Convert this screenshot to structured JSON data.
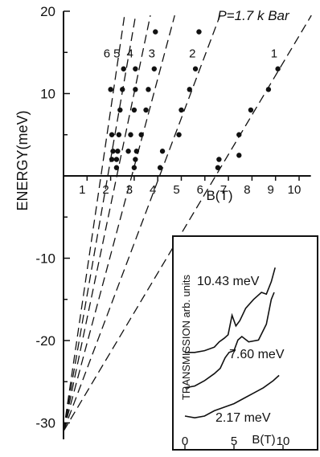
{
  "chart_data": {
    "type": "scatter",
    "pressure_label": "P=1.7 k Bar",
    "ylabel": "ENERGY(meV)",
    "xlabel": "B(T)",
    "xlim": [
      0,
      10.5
    ],
    "ylim": [
      -32,
      20
    ],
    "x_ticks": [
      "1",
      "2",
      "3",
      "4",
      "5",
      "6",
      "7",
      "8",
      "9",
      "10"
    ],
    "y_ticks": [
      "20",
      "10",
      "-10",
      "-20",
      "-30"
    ],
    "series": [
      {
        "name": "1",
        "line": {
          "x0": 0,
          "y0": -31,
          "slope": 4.8
        },
        "points": [
          [
            6.55,
            1
          ],
          [
            6.6,
            2
          ],
          [
            7.45,
            2.5
          ],
          [
            7.45,
            5
          ],
          [
            7.95,
            8
          ],
          [
            8.7,
            10.5
          ],
          [
            9.1,
            13
          ]
        ]
      },
      {
        "name": "2",
        "line": {
          "x0": 0,
          "y0": -31,
          "slope": 7.6
        },
        "points": [
          [
            4.1,
            1
          ],
          [
            4.2,
            3
          ],
          [
            4.9,
            5
          ],
          [
            5.0,
            8
          ],
          [
            5.35,
            10.5
          ],
          [
            5.6,
            13
          ],
          [
            5.75,
            17.5
          ]
        ]
      },
      {
        "name": "3",
        "line": {
          "x0": 0,
          "y0": -31,
          "slope": 10.7
        },
        "points": [
          [
            3.0,
            1
          ],
          [
            3.05,
            2
          ],
          [
            3.1,
            3
          ],
          [
            3.3,
            5
          ],
          [
            3.5,
            8
          ],
          [
            3.6,
            10.5
          ],
          [
            3.85,
            13
          ],
          [
            3.9,
            17.5
          ]
        ]
      },
      {
        "name": "4",
        "line": {
          "x0": 0,
          "y0": -31,
          "slope": 13.7
        },
        "points": [
          [
            2.75,
            3
          ],
          [
            2.85,
            5
          ],
          [
            3.0,
            8
          ],
          [
            3.05,
            10.5
          ],
          [
            3.05,
            13
          ]
        ]
      },
      {
        "name": "5",
        "line": {
          "x0": 0,
          "y0": -31,
          "slope": 16.5
        },
        "points": [
          [
            2.25,
            1
          ],
          [
            2.25,
            2
          ],
          [
            2.3,
            3
          ],
          [
            2.35,
            5
          ],
          [
            2.4,
            8
          ],
          [
            2.5,
            10.5
          ],
          [
            2.55,
            13
          ]
        ]
      },
      {
        "name": "6",
        "line": {
          "x0": 0,
          "y0": -31,
          "slope": 19.5
        },
        "points": [
          [
            2.05,
            2
          ],
          [
            2.1,
            3
          ],
          [
            2.05,
            5
          ],
          [
            2.0,
            10.5
          ]
        ]
      }
    ],
    "inset": {
      "ylabel": "TRANSMISSION arb. units",
      "xlabel": "B(T)",
      "x_ticks": [
        "0",
        "5",
        "10"
      ],
      "xlim": [
        0,
        10
      ],
      "ylim": [
        0,
        10
      ],
      "curves": [
        {
          "name": "10.43 meV",
          "points": [
            [
              0,
              4.6
            ],
            [
              1,
              4.6
            ],
            [
              2,
              4.7
            ],
            [
              3,
              4.9
            ],
            [
              3.5,
              5.2
            ],
            [
              4,
              5.4
            ],
            [
              4.4,
              5.6
            ],
            [
              4.8,
              6.7
            ],
            [
              5.2,
              6.1
            ],
            [
              5.6,
              6.4
            ],
            [
              6.2,
              7.1
            ],
            [
              7,
              7.6
            ],
            [
              7.8,
              8.0
            ],
            [
              8.3,
              7.9
            ],
            [
              8.8,
              8.6
            ],
            [
              9.2,
              9.4
            ]
          ]
        },
        {
          "name": "7.60 meV",
          "points": [
            [
              0,
              2.6
            ],
            [
              1,
              2.7
            ],
            [
              2,
              3.0
            ],
            [
              3,
              3.4
            ],
            [
              3.6,
              3.7
            ],
            [
              4.1,
              4.3
            ],
            [
              4.5,
              4.6
            ],
            [
              5,
              4.7
            ],
            [
              5.4,
              5.3
            ],
            [
              5.8,
              5.5
            ],
            [
              6.5,
              5.2
            ],
            [
              7.5,
              5.3
            ],
            [
              8.3,
              6.2
            ],
            [
              8.8,
              7.6
            ],
            [
              9.1,
              8.0
            ]
          ]
        },
        {
          "name": "2.17 meV",
          "points": [
            [
              0,
              1.0
            ],
            [
              1,
              0.9
            ],
            [
              2,
              1.0
            ],
            [
              3,
              1.3
            ],
            [
              4,
              1.5
            ],
            [
              5,
              1.7
            ],
            [
              6,
              2.0
            ],
            [
              7,
              2.3
            ],
            [
              8,
              2.6
            ],
            [
              9,
              3.0
            ],
            [
              9.6,
              3.3
            ]
          ]
        }
      ]
    }
  }
}
